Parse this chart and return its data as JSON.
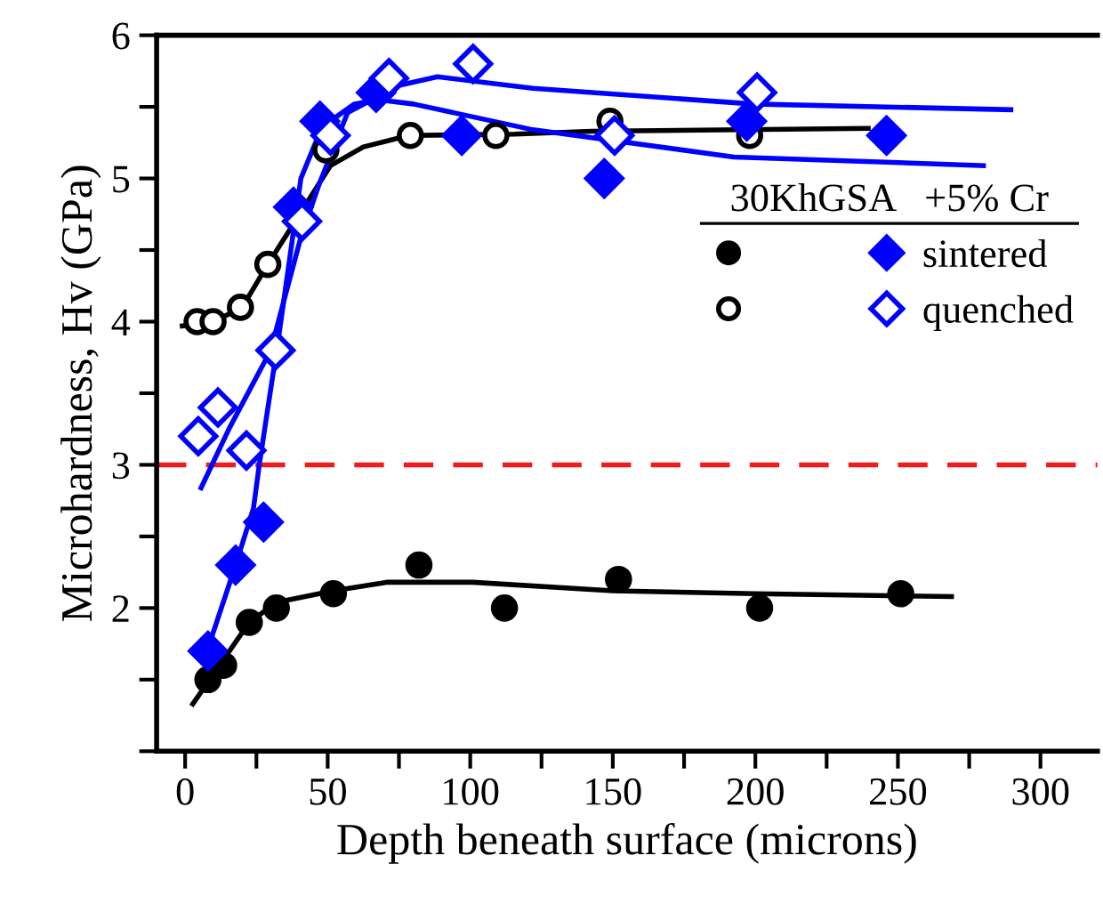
{
  "chart_data": {
    "type": "scatter",
    "xlabel": "Depth beneath surface (microns)",
    "ylabel": "Microhardness, Hv (GPa)",
    "xlim": [
      -10,
      320
    ],
    "ylim": [
      1,
      6
    ],
    "xticks": [
      0,
      {
        "value": 25,
        "label": null
      },
      50,
      {
        "value": 75,
        "label": null
      },
      100,
      {
        "value": 125,
        "label": null
      },
      150,
      {
        "value": 175,
        "label": null
      },
      200,
      {
        "value": 225,
        "label": null
      },
      250,
      {
        "value": 275,
        "label": null
      },
      300
    ],
    "yticks": [
      {
        "value": 1,
        "label": null
      },
      {
        "value": 1.5,
        "label": null
      },
      2,
      {
        "value": 2.5,
        "label": null
      },
      3,
      {
        "value": 3.5,
        "label": null
      },
      4,
      {
        "value": 4.5,
        "label": null
      },
      5,
      {
        "value": 5.5,
        "label": null
      },
      6
    ],
    "grid": false,
    "legend": "right",
    "legend_title": "30KhGSA   +5% Cr",
    "ref_lines": [
      {
        "axis": "y",
        "value": 3.0,
        "color": "#ee1c1c",
        "line_style": "dashed"
      }
    ],
    "series": [
      {
        "color": "#000000",
        "marker": "circle",
        "x": [
          8,
          13.5,
          22.5,
          32,
          52,
          82,
          112,
          152,
          201.5,
          251
        ],
        "values": [
          1.5,
          1.6,
          1.9,
          2.0,
          2.1,
          2.3,
          2.0,
          2.2,
          2.0,
          2.1
        ]
      },
      {
        "color": "#000000",
        "marker": "circle-open",
        "x": [
          4.2,
          9.8,
          19.4,
          29,
          49.4,
          79,
          109,
          149,
          198
        ],
        "values": [
          4.0,
          4.0,
          4.1,
          4.4,
          5.2,
          5.3,
          5.3,
          5.4,
          5.3
        ]
      },
      {
        "name": "sintered",
        "color": "#0000ff",
        "marker": "diamond",
        "x": [
          8,
          17.7,
          27.5,
          38,
          47.3,
          67,
          97,
          147,
          197,
          246
        ],
        "values": [
          1.7,
          2.3,
          2.6,
          4.8,
          5.4,
          5.6,
          5.3,
          5.0,
          5.4,
          5.3
        ]
      },
      {
        "name": "quenched",
        "color": "#0000ff",
        "marker": "diamond-open",
        "x": [
          4.6,
          11.5,
          21.5,
          31.7,
          41,
          51,
          71.5,
          101,
          150.6,
          200.6
        ],
        "values": [
          3.2,
          3.4,
          3.1,
          3.8,
          4.7,
          5.3,
          5.7,
          5.8,
          5.3,
          5.6
        ]
      },
      {
        "type": "line",
        "color": "#000000",
        "x": [
          2.7,
          22.5,
          32,
          52,
          70.6,
          100.8,
          150,
          200,
          268.8
        ],
        "values": [
          1.33,
          1.9,
          2.04,
          2.12,
          2.18,
          2.18,
          2.12,
          2.1,
          2.08
        ]
      },
      {
        "type": "line",
        "color": "#000000",
        "x": [
          -1,
          10,
          20,
          29,
          51,
          62.5,
          78.5,
          115.6,
          142.7,
          239.6
        ],
        "values": [
          3.97,
          4.0,
          4.1,
          4.4,
          5.09,
          5.22,
          5.3,
          5.31,
          5.33,
          5.35
        ]
      },
      {
        "type": "line",
        "color": "#0000ff",
        "x": [
          8.7,
          17.7,
          24,
          26,
          33,
          40.6,
          48,
          59.4,
          67.5,
          80,
          122,
          192.5,
          280
        ],
        "values": [
          1.76,
          2.3,
          2.7,
          3.0,
          3.92,
          5.0,
          5.36,
          5.52,
          5.55,
          5.52,
          5.34,
          5.15,
          5.09
        ]
      },
      {
        "type": "line",
        "color": "#0000ff",
        "x": [
          5.6,
          15.6,
          30,
          40.6,
          47,
          57,
          75,
          88.5,
          122,
          199,
          289.6
        ],
        "values": [
          2.84,
          3.26,
          3.8,
          4.59,
          4.96,
          5.46,
          5.65,
          5.71,
          5.63,
          5.52,
          5.48
        ]
      }
    ]
  }
}
